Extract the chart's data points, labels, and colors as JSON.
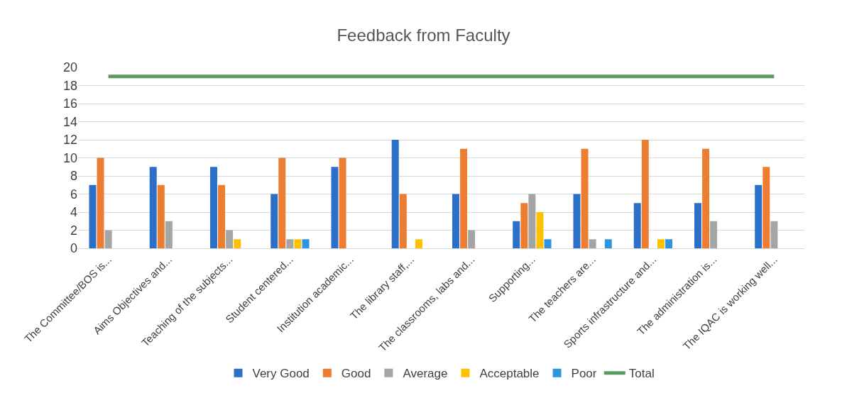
{
  "chart_data": {
    "type": "bar",
    "title": "Feedback from Faculty",
    "categories": [
      "The Committee/BOS is...",
      "Aims Objectives and...",
      "Teaching of the subjects...",
      "Student centered...",
      "Institution academic...",
      "The library staff,...",
      "The classrooms, labs and...",
      "Supporting...",
      "The teachers are...",
      "Sports infrastructure and...",
      "The administration is...",
      "The IQAC is working well..."
    ],
    "series": [
      {
        "name": "Very Good",
        "color": "#2b6fc9",
        "values": [
          7,
          9,
          9,
          6,
          9,
          12,
          6,
          3,
          6,
          5,
          5,
          7
        ]
      },
      {
        "name": "Good",
        "color": "#ed7d31",
        "values": [
          10,
          7,
          7,
          10,
          10,
          6,
          11,
          5,
          11,
          12,
          11,
          9
        ]
      },
      {
        "name": "Average",
        "color": "#a5a5a5",
        "values": [
          2,
          3,
          2,
          1,
          0,
          0,
          2,
          6,
          1,
          0,
          3,
          3
        ]
      },
      {
        "name": "Acceptable",
        "color": "#ffc000",
        "values": [
          0,
          0,
          1,
          1,
          0,
          1,
          0,
          4,
          0,
          1,
          0,
          0
        ]
      },
      {
        "name": "Poor",
        "color": "#2e95e0",
        "values": [
          0,
          0,
          0,
          1,
          0,
          0,
          0,
          1,
          1,
          1,
          0,
          0
        ]
      },
      {
        "name": "Total",
        "type": "line",
        "color": "#5b9b5f",
        "values": [
          19,
          19,
          19,
          19,
          19,
          19,
          19,
          19,
          19,
          19,
          19,
          19
        ]
      }
    ],
    "ylim": [
      0,
      20
    ],
    "yticks": [
      0,
      2,
      4,
      6,
      8,
      10,
      12,
      14,
      16,
      18,
      20
    ],
    "grid": "y",
    "legend": "bottom"
  }
}
